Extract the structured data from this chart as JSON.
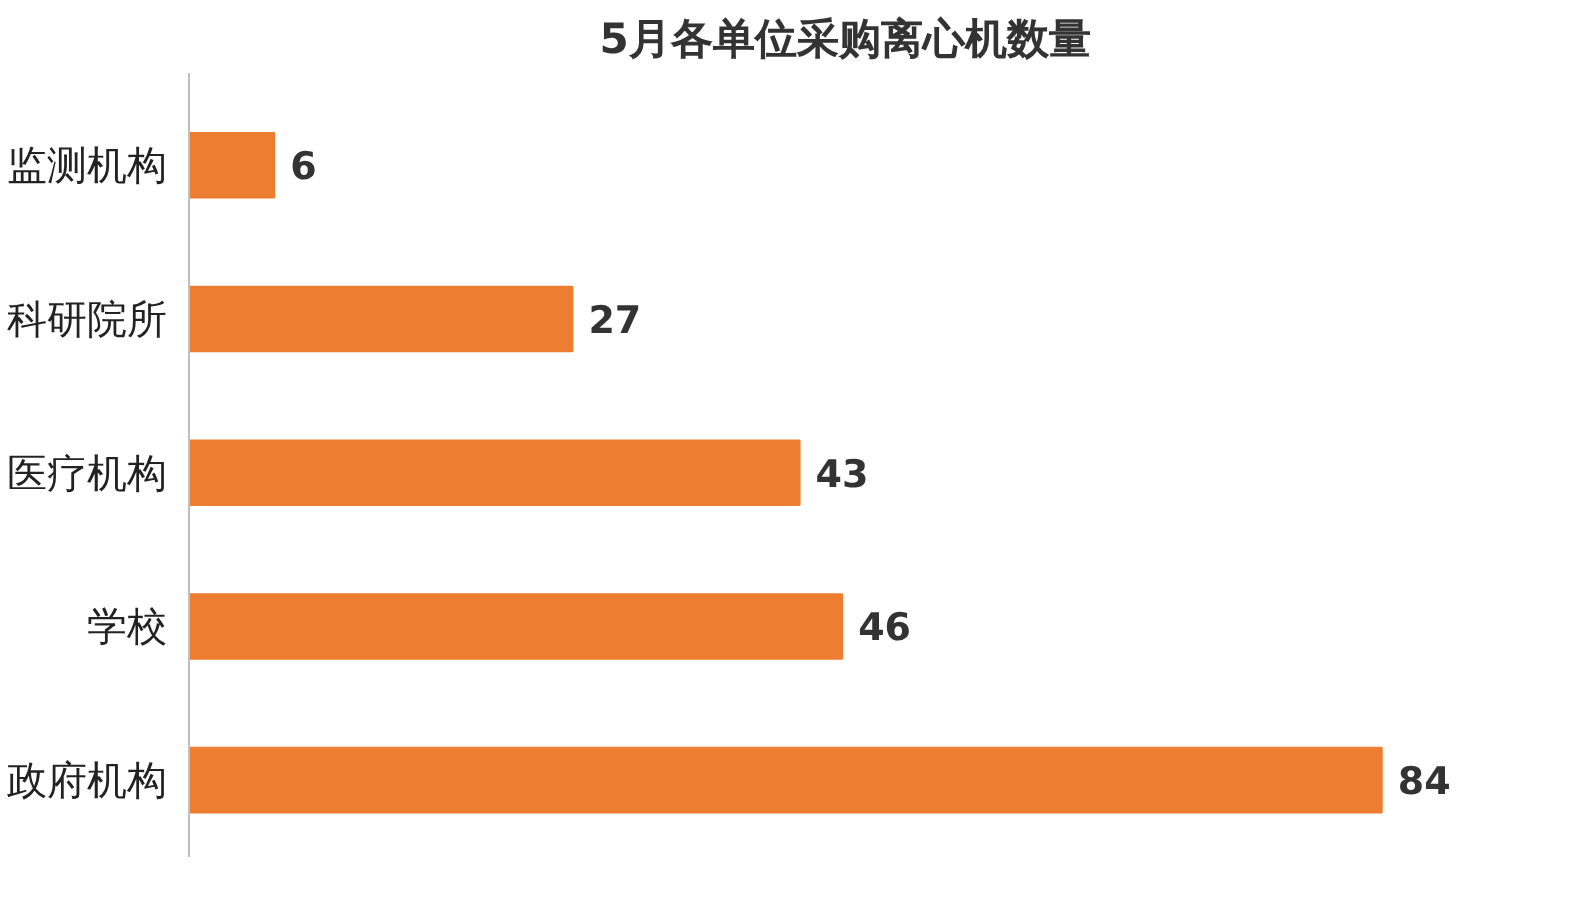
{
  "chart_data": {
    "type": "bar",
    "orientation": "horizontal",
    "title": "5月各单位采购离心机数量",
    "categories": [
      "监测机构",
      "科研院所",
      "医疗机构",
      "学校",
      "政府机构"
    ],
    "values": [
      6,
      27,
      43,
      46,
      84
    ],
    "color": "#ed7d31",
    "data_labels": true,
    "grid": false
  }
}
